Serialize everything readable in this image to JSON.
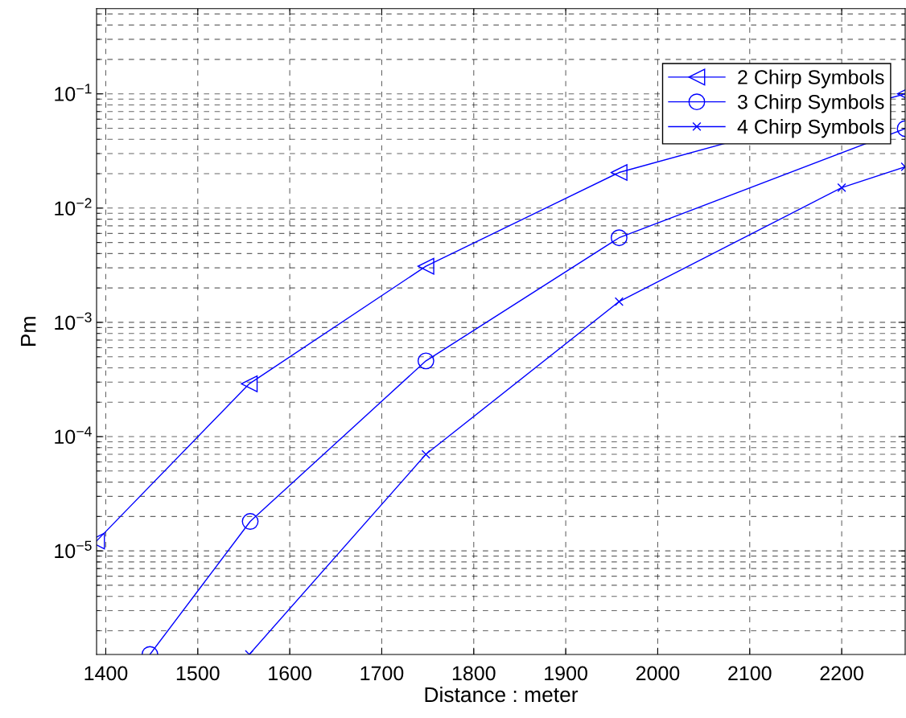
{
  "chart_data": {
    "type": "line",
    "xlabel": "Distance : meter",
    "ylabel": "Pm",
    "log": "y",
    "grid": true,
    "legend": "top right",
    "xlim": [
      1390,
      2269
    ],
    "xticks": [
      1400,
      1500,
      1600,
      1700,
      1800,
      1900,
      2000,
      2100,
      2200
    ],
    "ylim": [
      1.24e-06,
      0.557
    ],
    "yticks": [
      {
        "value": 1e-05,
        "label": "10$^{−5}$"
      },
      {
        "value": 0.0001,
        "label": "10$^{−4}$"
      },
      {
        "value": 0.001,
        "label": "10$^{−3}$"
      },
      {
        "value": 0.01,
        "label": "10$^{−2}$"
      },
      {
        "value": 0.1,
        "label": "10$^{−1}$"
      }
    ],
    "series": [
      {
        "name": "2 Chirp Symbols",
        "color": "#0000ff",
        "marker": "triangle",
        "x": [
          1390,
          1556,
          1748,
          1958,
          2269
        ],
        "values": [
          1.22e-05,
          0.00029,
          0.0031,
          0.0205,
          0.1
        ]
      },
      {
        "name": "3 Chirp Symbols",
        "color": "#0000ff",
        "marker": "circle",
        "x": [
          1448,
          1557,
          1748,
          1958,
          2269
        ],
        "values": [
          1.24e-06,
          1.81e-05,
          0.00046,
          0.0055,
          0.0496
        ]
      },
      {
        "name": "4 Chirp Symbols",
        "color": "#0000ff",
        "marker": "cross",
        "x": [
          1556,
          1748,
          1958,
          2200,
          2269
        ],
        "values": [
          1.24e-06,
          7e-05,
          0.00152,
          0.0151,
          0.023
        ]
      }
    ]
  }
}
